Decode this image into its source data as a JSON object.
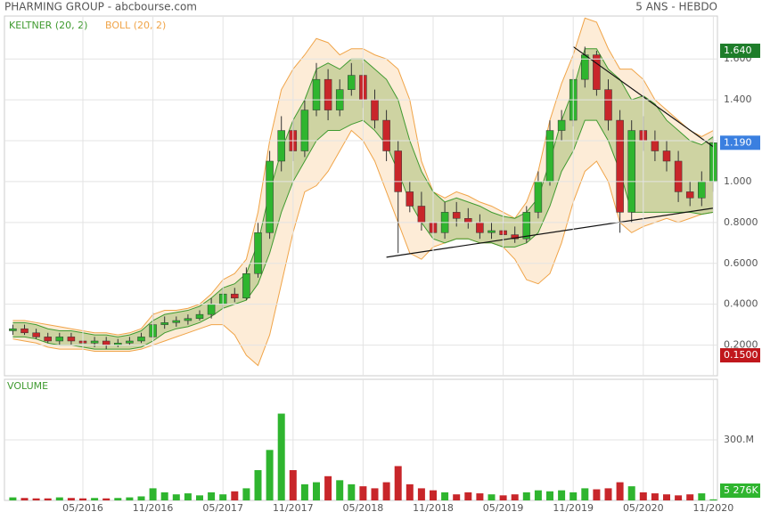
{
  "chart_data": {
    "type": "candlestick",
    "title": "PHARMING GROUP - abcbourse.com",
    "period": "5 ANS - HEBDO",
    "indicators": [
      {
        "name": "KELTNER (20, 2)",
        "color": "#3f9a2f",
        "fill": "rgba(110,160,50,0.32)",
        "upper": [
          0.31,
          0.31,
          0.3,
          0.28,
          0.27,
          0.27,
          0.26,
          0.25,
          0.25,
          0.24,
          0.25,
          0.27,
          0.32,
          0.35,
          0.36,
          0.37,
          0.39,
          0.43,
          0.48,
          0.5,
          0.55,
          0.7,
          0.95,
          1.15,
          1.3,
          1.4,
          1.55,
          1.58,
          1.55,
          1.6,
          1.6,
          1.55,
          1.5,
          1.4,
          1.2,
          1.05,
          0.95,
          0.9,
          0.92,
          0.9,
          0.88,
          0.85,
          0.83,
          0.82,
          0.85,
          0.92,
          1.1,
          1.3,
          1.45,
          1.65,
          1.65,
          1.55,
          1.5,
          1.4,
          1.42,
          1.38,
          1.3,
          1.25,
          1.2,
          1.18,
          1.22
        ],
        "lower": [
          0.24,
          0.24,
          0.23,
          0.21,
          0.2,
          0.2,
          0.19,
          0.18,
          0.18,
          0.18,
          0.18,
          0.19,
          0.22,
          0.26,
          0.28,
          0.29,
          0.31,
          0.34,
          0.38,
          0.4,
          0.42,
          0.5,
          0.65,
          0.85,
          1.0,
          1.1,
          1.2,
          1.25,
          1.25,
          1.28,
          1.3,
          1.25,
          1.18,
          1.05,
          0.9,
          0.8,
          0.72,
          0.7,
          0.72,
          0.72,
          0.7,
          0.7,
          0.68,
          0.68,
          0.7,
          0.75,
          0.88,
          1.05,
          1.15,
          1.3,
          1.3,
          1.2,
          1.05,
          0.85,
          0.85,
          0.85,
          0.85,
          0.85,
          0.85,
          0.84,
          0.85
        ]
      },
      {
        "name": "BOLL (20, 2)",
        "color": "#f0a448",
        "fill": "rgba(250,200,140,0.35)",
        "upper": [
          0.32,
          0.32,
          0.31,
          0.3,
          0.29,
          0.28,
          0.27,
          0.26,
          0.26,
          0.25,
          0.26,
          0.28,
          0.35,
          0.37,
          0.37,
          0.38,
          0.4,
          0.45,
          0.52,
          0.55,
          0.62,
          0.85,
          1.2,
          1.45,
          1.55,
          1.62,
          1.7,
          1.68,
          1.62,
          1.65,
          1.65,
          1.62,
          1.6,
          1.55,
          1.4,
          1.1,
          0.95,
          0.92,
          0.95,
          0.93,
          0.9,
          0.88,
          0.85,
          0.82,
          0.9,
          1.05,
          1.3,
          1.48,
          1.62,
          1.8,
          1.78,
          1.65,
          1.55,
          1.55,
          1.5,
          1.4,
          1.35,
          1.3,
          1.25,
          1.22,
          1.25
        ],
        "lower": [
          0.23,
          0.22,
          0.21,
          0.19,
          0.18,
          0.18,
          0.18,
          0.17,
          0.17,
          0.17,
          0.17,
          0.18,
          0.2,
          0.22,
          0.24,
          0.26,
          0.28,
          0.3,
          0.3,
          0.25,
          0.15,
          0.1,
          0.25,
          0.5,
          0.75,
          0.95,
          0.98,
          1.05,
          1.15,
          1.25,
          1.2,
          1.1,
          0.95,
          0.8,
          0.65,
          0.62,
          0.68,
          0.7,
          0.72,
          0.72,
          0.7,
          0.7,
          0.68,
          0.62,
          0.52,
          0.5,
          0.55,
          0.7,
          0.9,
          1.05,
          1.1,
          1.0,
          0.8,
          0.75,
          0.78,
          0.8,
          0.82,
          0.8,
          0.82,
          0.84,
          0.85
        ]
      }
    ],
    "categories": [
      null,
      null,
      null,
      null,
      null,
      null,
      "05/2016",
      null,
      null,
      null,
      null,
      null,
      "11/2016",
      null,
      null,
      null,
      null,
      null,
      "05/2017",
      null,
      null,
      null,
      null,
      null,
      "11/2017",
      null,
      null,
      null,
      null,
      null,
      "05/2018",
      null,
      null,
      null,
      null,
      null,
      "11/2018",
      null,
      null,
      null,
      null,
      null,
      "05/2019",
      null,
      null,
      null,
      null,
      null,
      "11/2019",
      null,
      null,
      null,
      null,
      null,
      "05/2020",
      null,
      null,
      null,
      null,
      null,
      "11/2020"
    ],
    "open": [
      0.27,
      0.28,
      0.26,
      0.24,
      0.22,
      0.24,
      0.22,
      0.21,
      0.22,
      0.2,
      0.21,
      0.22,
      0.24,
      0.3,
      0.31,
      0.32,
      0.33,
      0.35,
      0.4,
      0.45,
      0.43,
      0.55,
      0.75,
      1.1,
      1.25,
      1.15,
      1.35,
      1.5,
      1.35,
      1.45,
      1.52,
      1.4,
      1.3,
      1.15,
      0.95,
      0.88,
      0.8,
      0.75,
      0.85,
      0.82,
      0.8,
      0.75,
      0.76,
      0.74,
      0.72,
      0.85,
      1.0,
      1.25,
      1.3,
      1.5,
      1.62,
      1.45,
      1.3,
      0.85,
      1.25,
      1.2,
      1.15,
      1.1,
      0.95,
      0.92,
      1.0
    ],
    "high": [
      0.3,
      0.3,
      0.28,
      0.26,
      0.26,
      0.26,
      0.24,
      0.24,
      0.24,
      0.23,
      0.24,
      0.26,
      0.36,
      0.34,
      0.34,
      0.35,
      0.37,
      0.43,
      0.48,
      0.48,
      0.58,
      0.8,
      1.15,
      1.32,
      1.3,
      1.4,
      1.58,
      1.55,
      1.5,
      1.58,
      1.58,
      1.45,
      1.35,
      1.2,
      1.0,
      0.95,
      0.85,
      0.9,
      0.9,
      0.87,
      0.84,
      0.8,
      0.8,
      0.78,
      0.88,
      1.05,
      1.3,
      1.35,
      1.55,
      1.66,
      1.64,
      1.5,
      1.35,
      1.3,
      1.32,
      1.25,
      1.2,
      1.15,
      1.0,
      1.05,
      1.22
    ],
    "low": [
      0.25,
      0.25,
      0.23,
      0.21,
      0.2,
      0.2,
      0.19,
      0.19,
      0.18,
      0.19,
      0.2,
      0.21,
      0.23,
      0.28,
      0.29,
      0.3,
      0.32,
      0.33,
      0.38,
      0.41,
      0.42,
      0.53,
      0.72,
      1.05,
      1.1,
      1.12,
      1.32,
      1.3,
      1.32,
      1.42,
      1.36,
      1.26,
      1.1,
      0.65,
      0.85,
      0.76,
      0.72,
      0.72,
      0.78,
      0.77,
      0.72,
      0.72,
      0.72,
      0.7,
      0.7,
      0.82,
      0.98,
      1.2,
      1.27,
      1.46,
      1.42,
      1.25,
      0.75,
      0.8,
      1.15,
      1.1,
      1.05,
      0.9,
      0.88,
      0.88,
      0.95
    ],
    "close": [
      0.28,
      0.26,
      0.24,
      0.22,
      0.24,
      0.22,
      0.21,
      0.22,
      0.2,
      0.21,
      0.22,
      0.24,
      0.3,
      0.31,
      0.32,
      0.33,
      0.35,
      0.4,
      0.45,
      0.43,
      0.55,
      0.75,
      1.1,
      1.25,
      1.15,
      1.35,
      1.5,
      1.35,
      1.45,
      1.52,
      1.4,
      1.3,
      1.15,
      0.95,
      0.88,
      0.8,
      0.75,
      0.85,
      0.82,
      0.8,
      0.75,
      0.76,
      0.74,
      0.72,
      0.85,
      1.0,
      1.25,
      1.3,
      1.5,
      1.62,
      1.45,
      1.3,
      0.85,
      1.25,
      1.2,
      1.15,
      1.1,
      0.95,
      0.92,
      1.0,
      1.19
    ],
    "up_color": "#2fb52f",
    "down_color": "#c8262a",
    "ylim": [
      0.05,
      1.81
    ],
    "yticks": [
      {
        "value": 0.2,
        "label": "0.2000"
      },
      {
        "value": 0.4,
        "label": "0.4000"
      },
      {
        "value": 0.6,
        "label": "0.6000"
      },
      {
        "value": 0.8,
        "label": "0.8000"
      },
      {
        "value": 1.0,
        "label": "1.000"
      },
      {
        "value": 1.2,
        "label": "1.200"
      },
      {
        "value": 1.4,
        "label": "1.400"
      },
      {
        "value": 1.6,
        "label": "1.600"
      }
    ],
    "grid": true,
    "badges": [
      {
        "value": 1.64,
        "label": "1.640",
        "color": "#1e7d2a"
      },
      {
        "value": 1.19,
        "label": "1.190",
        "color": "#3a7fe0"
      },
      {
        "value": 0.15,
        "label": "0.1500",
        "color": "#c0171c"
      }
    ],
    "trendlines": [
      {
        "start_index": 48,
        "start": 1.66,
        "end_index": 60,
        "end": 1.17
      },
      {
        "start_index": 32,
        "start": 0.63,
        "end_index": 60,
        "end": 0.87
      }
    ],
    "volume": {
      "title": "VOLUME",
      "values": [
        15,
        12,
        10,
        10,
        15,
        12,
        10,
        12,
        10,
        12,
        15,
        20,
        60,
        40,
        30,
        35,
        25,
        40,
        30,
        45,
        60,
        150,
        250,
        430,
        150,
        80,
        90,
        120,
        100,
        80,
        70,
        60,
        90,
        170,
        80,
        60,
        50,
        40,
        30,
        40,
        35,
        30,
        25,
        30,
        40,
        50,
        45,
        50,
        40,
        60,
        55,
        60,
        90,
        70,
        40,
        35,
        30,
        25,
        30,
        35,
        5.276
      ],
      "ylim": [
        0,
        600
      ],
      "yticks": [
        {
          "value": 300,
          "label": "300.M"
        }
      ],
      "last_badge": {
        "value": 5.276,
        "label": "5 276K",
        "color": "#2fb52f"
      }
    }
  }
}
